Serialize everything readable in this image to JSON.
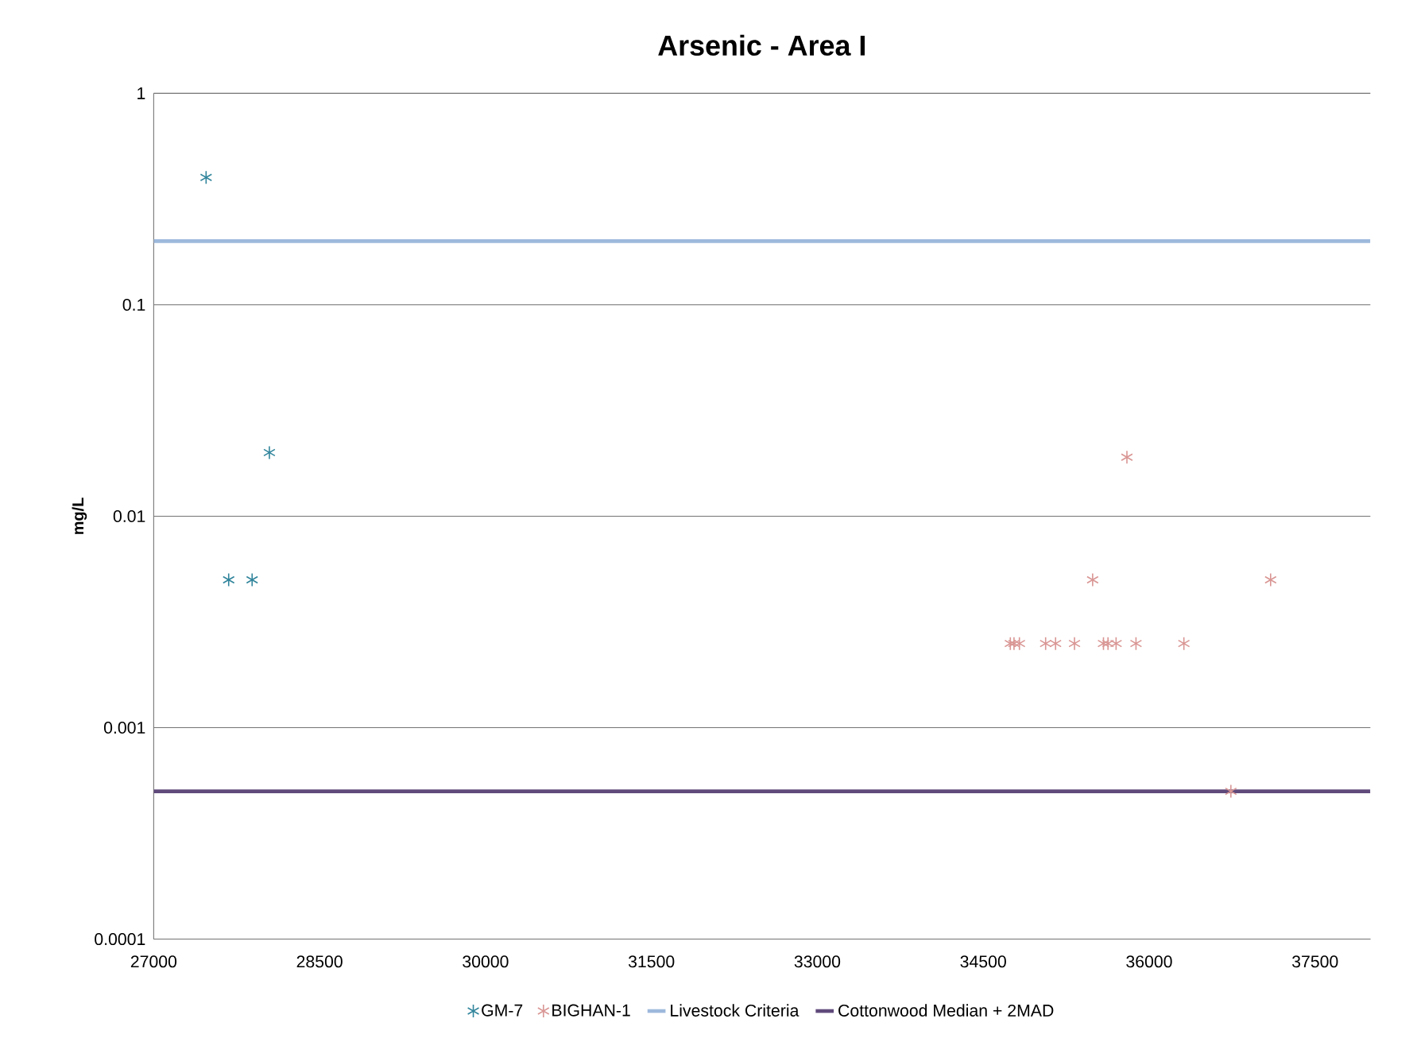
{
  "chart_data": {
    "type": "scatter",
    "title": "Arsenic - Area I",
    "ylabel": "mg/L",
    "series": [
      {
        "name": "GM-7",
        "color": "#31859c",
        "x": [
          27474,
          27678,
          27890,
          28046
        ],
        "values": [
          0.4,
          0.005,
          0.005,
          0.02
        ]
      },
      {
        "name": "BIGHAN-1",
        "color": "#d99694",
        "x": [
          34745,
          34778,
          34827,
          35064,
          35154,
          35325,
          35489,
          35587,
          35628,
          35701,
          35799,
          35881,
          36314,
          36739,
          37098
        ],
        "values": [
          0.0025,
          0.0025,
          0.0025,
          0.0025,
          0.0025,
          0.0025,
          0.005,
          0.0025,
          0.0025,
          0.0025,
          0.019,
          0.0025,
          0.0025,
          0.0005,
          0.005
        ]
      }
    ],
    "ref_lines": [
      {
        "axis": "y",
        "value": 0.2,
        "label": "Livestock Criteria",
        "color": "#9db9dc"
      },
      {
        "axis": "y",
        "value": 0.0005,
        "label": "Cottonwood Median + 2MAD",
        "color": "#604a7b"
      }
    ],
    "xlim": [
      27000,
      38000
    ],
    "xticks": [
      27000,
      28500,
      30000,
      31500,
      33000,
      34500,
      36000,
      37500
    ],
    "ylim": [
      0.0001,
      1
    ],
    "yticks": [
      0.0001,
      0.001,
      0.01,
      0.1,
      1
    ],
    "log": "y",
    "grid": "y",
    "legend": "bottom",
    "marker": "cross"
  }
}
